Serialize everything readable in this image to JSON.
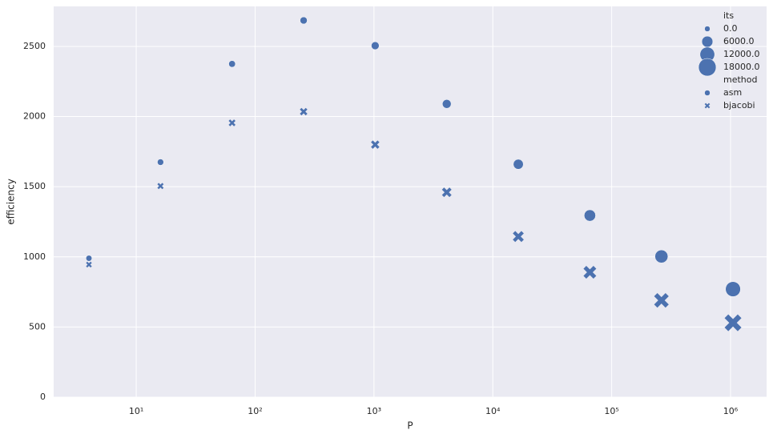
{
  "chart_data": {
    "type": "scatter",
    "x_label": "P",
    "y_label": "efficiency",
    "x": [
      4,
      16,
      64,
      256,
      1024,
      4096,
      16384,
      65536,
      262144,
      1048576
    ],
    "x_scale": "log",
    "xlim": [
      2.02,
      2010000
    ],
    "xticks": [
      {
        "value": 10,
        "label": "10¹"
      },
      {
        "value": 100,
        "label": "10²"
      },
      {
        "value": 1000,
        "label": "10³"
      },
      {
        "value": 10000,
        "label": "10⁴"
      },
      {
        "value": 100000,
        "label": "10⁵"
      },
      {
        "value": 1000000,
        "label": "10⁶"
      }
    ],
    "ylim": [
      0,
      2785
    ],
    "yticks": [
      0,
      500,
      1000,
      1500,
      2000,
      2500
    ],
    "grid": true,
    "legend_position": "upper right",
    "size_legend": {
      "title": "its",
      "entries": [
        {
          "value": 0,
          "label": "0.0"
        },
        {
          "value": 6000,
          "label": "6000.0"
        },
        {
          "value": 12000,
          "label": "12000.0"
        },
        {
          "value": 18000,
          "label": "18000.0"
        }
      ]
    },
    "marker_legend_title": "method",
    "series": [
      {
        "name": "asm",
        "color": "#4c72b0",
        "marker": "o",
        "values": [
          990,
          1675,
          2375,
          2685,
          2505,
          2090,
          1660,
          1295,
          1003,
          770
        ],
        "sizes": [
          300,
          600,
          900,
          1300,
          2000,
          3000,
          4500,
          6500,
          9000,
          12500
        ]
      },
      {
        "name": "bjacobi",
        "color": "#4c72b0",
        "marker": "x",
        "values": [
          945,
          1505,
          1955,
          2035,
          1800,
          1460,
          1145,
          890,
          690,
          530
        ],
        "sizes": [
          400,
          800,
          1300,
          2000,
          3000,
          4500,
          6500,
          9500,
          13000,
          18000
        ]
      }
    ]
  }
}
